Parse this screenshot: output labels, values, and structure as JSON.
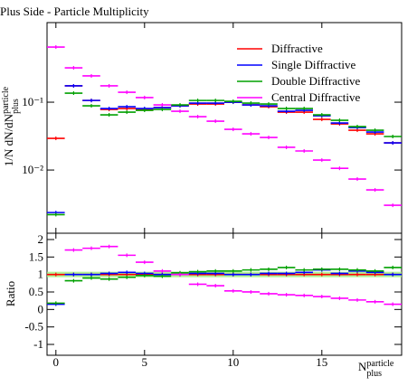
{
  "chart_data": [
    {
      "type": "line",
      "title": "Plus Side - Particle Multiplicity",
      "ylabel": {
        "main": "1/N dN/dN",
        "sup": "particle",
        "sub": "plus"
      },
      "xlabel": {
        "main": "N",
        "sup": "particle",
        "sub": "plus"
      },
      "x": [
        0,
        1,
        2,
        3,
        4,
        5,
        6,
        7,
        8,
        9,
        10,
        11,
        12,
        13,
        14,
        15,
        16,
        17,
        18,
        19
      ],
      "xlim": [
        -0.5,
        19.5
      ],
      "xticks": [
        0,
        5,
        10,
        15
      ],
      "log_y": true,
      "ylim": [
        0.00117,
        1.49
      ],
      "yticks": [
        {
          "value": 0.1,
          "label": "10⁻¹"
        },
        {
          "value": 0.01,
          "label": "10⁻²"
        }
      ],
      "legend": "upper right",
      "series": [
        {
          "name": "Diffractive",
          "color": "#ff0000",
          "values": [
            0.0293,
            0.174,
            0.106,
            0.0782,
            0.0807,
            0.0782,
            0.0832,
            0.0884,
            0.094,
            0.094,
            0.1,
            0.0912,
            0.0858,
            0.0713,
            0.0713,
            0.0558,
            0.0479,
            0.0386,
            0.0341,
            0.0251
          ]
        },
        {
          "name": "Single Diffractive",
          "color": "#0000ff",
          "values": [
            0.00236,
            0.174,
            0.106,
            0.0807,
            0.0858,
            0.0807,
            0.0832,
            0.0884,
            0.097,
            0.097,
            0.1,
            0.0912,
            0.0884,
            0.0736,
            0.0759,
            0.0631,
            0.0493,
            0.0423,
            0.0363,
            0.0251
          ]
        },
        {
          "name": "Double Diffractive",
          "color": "#00a000",
          "values": [
            0.0022,
            0.136,
            0.0884,
            0.0651,
            0.0713,
            0.0759,
            0.0782,
            0.0912,
            0.106,
            0.106,
            0.103,
            0.097,
            0.094,
            0.0807,
            0.0807,
            0.0651,
            0.0541,
            0.0437,
            0.0386,
            0.0312
          ]
        },
        {
          "name": "Central Diffractive",
          "color": "#ff00ff",
          "values": [
            0.65,
            0.321,
            0.244,
            0.174,
            0.14,
            0.117,
            0.0912,
            0.0736,
            0.0612,
            0.0525,
            0.0398,
            0.0341,
            0.0302,
            0.0216,
            0.0191,
            0.014,
            0.0106,
            0.00736,
            0.00509,
            0.00302
          ]
        }
      ]
    },
    {
      "type": "line",
      "ylabel": "Ratio",
      "x": [
        0,
        1,
        2,
        3,
        4,
        5,
        6,
        7,
        8,
        9,
        10,
        11,
        12,
        13,
        14,
        15,
        16,
        17,
        18,
        19
      ],
      "xlim": [
        -0.5,
        19.5
      ],
      "xticks": [
        0,
        5,
        10,
        15
      ],
      "ylim": [
        -1.31,
        2.18
      ],
      "yticks": [
        2,
        1.5,
        1,
        0.5,
        0,
        -0.5,
        -1
      ],
      "series": [
        {
          "color": "#ff0000",
          "values": [
            1,
            1,
            1,
            1,
            1,
            1,
            1,
            1,
            1,
            1,
            1,
            1,
            1,
            1,
            1,
            1,
            1,
            1,
            1,
            1
          ]
        },
        {
          "color": "#0000ff",
          "values": [
            0.15,
            1,
            1,
            1.03,
            1.06,
            1.03,
            1,
            1,
            1.03,
            1.03,
            1,
            1,
            1.03,
            1.03,
            1.06,
            1.13,
            1.03,
            1.1,
            1.06,
            1
          ]
        },
        {
          "color": "#00a000",
          "values": [
            0.18,
            0.82,
            0.9,
            0.87,
            0.92,
            0.97,
            0.95,
            1.05,
            1.08,
            1.1,
            1.1,
            1.13,
            1.15,
            1.2,
            1.13,
            1.15,
            1.15,
            1.13,
            1.1,
            1.2
          ]
        },
        {
          "color": "#ff00ff",
          "values": [
            null,
            1.7,
            1.75,
            1.8,
            1.55,
            1.35,
            1.1,
            1.0,
            0.72,
            0.68,
            0.53,
            0.5,
            0.45,
            0.42,
            0.4,
            0.37,
            0.32,
            0.27,
            0.22,
            0.15
          ]
        }
      ]
    }
  ]
}
